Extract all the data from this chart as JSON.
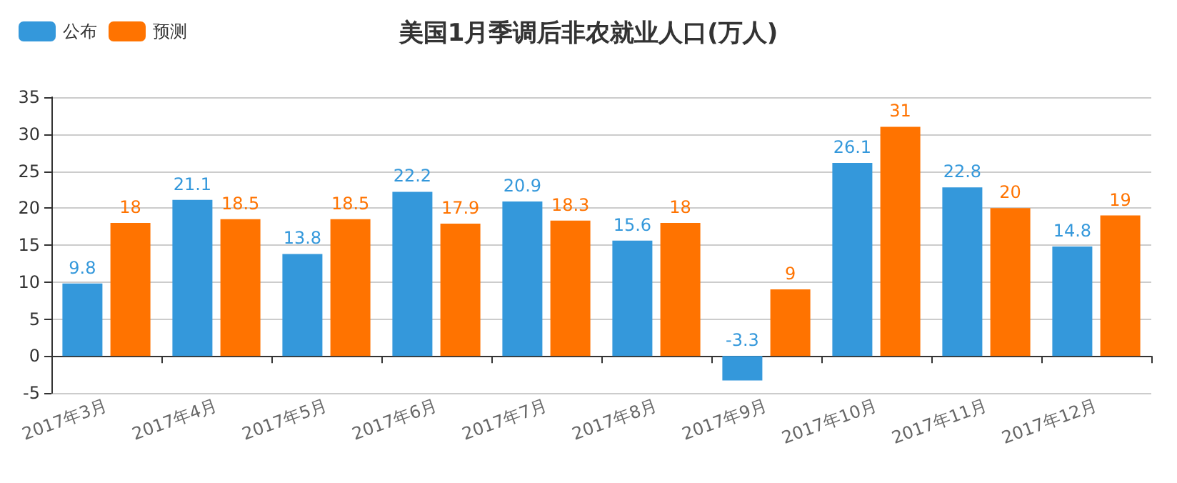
{
  "chart_data": {
    "type": "bar",
    "title": "美国1月季调后非农就业人口(万人)",
    "categories": [
      "2017年3月",
      "2017年4月",
      "2017年5月",
      "2017年6月",
      "2017年7月",
      "2017年8月",
      "2017年9月",
      "2017年10月",
      "2017年11月",
      "2017年12月"
    ],
    "series": [
      {
        "name": "公布",
        "color": "#3498db",
        "values": [
          9.8,
          21.1,
          13.8,
          22.2,
          20.9,
          15.6,
          -3.3,
          26.1,
          22.8,
          14.8
        ]
      },
      {
        "name": "预测",
        "color": "#ff7300",
        "values": [
          18,
          18.5,
          18.5,
          17.9,
          18.3,
          18,
          9,
          31,
          20,
          19
        ]
      }
    ],
    "ylim": [
      -5,
      35
    ],
    "yticks": [
      -5,
      0,
      5,
      10,
      15,
      20,
      25,
      30,
      35
    ],
    "grid": "y",
    "legend": "top left",
    "data_labels": true
  }
}
